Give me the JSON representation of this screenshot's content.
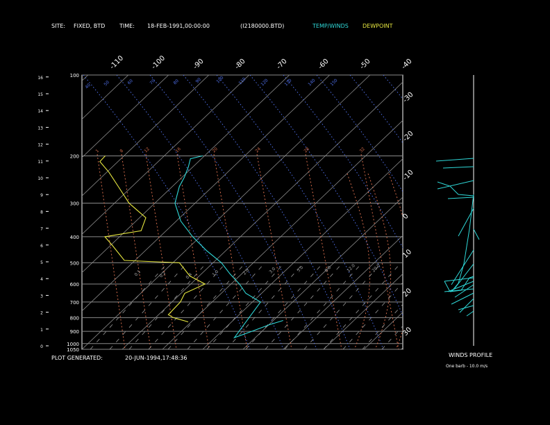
{
  "header": {
    "site_label": "SITE:",
    "site_value": "FIXED, BTD",
    "time_label": "TIME:",
    "time_value": "18-FEB-1991,00:00:00",
    "file_value": "(I2180000.BTD)",
    "legend_temp": "TEMP/WINDS",
    "legend_dew": "DEWPOINT"
  },
  "footer": {
    "generated_label": "PLOT GENERATED:",
    "generated_value": "20-JUN-1994,17:48:36",
    "winds_title": "WINDS PROFILE",
    "barb_note": "One barb - 10.0 m/s"
  },
  "colors": {
    "temperature": "#2fd8d8",
    "dewpoint": "#e8e840",
    "grid": "#8a8a8a",
    "dry_adiabat": "#4f6fe8",
    "mixing_ratio": "#d06a4a",
    "header_cyan": "#2fd8d8",
    "header_yellow": "#e8e840"
  },
  "chart_data": {
    "type": "line",
    "diagram": "skew-t log-p",
    "pressure_range_hpa": [
      1050,
      100
    ],
    "temp_range_c": [
      -40,
      30
    ],
    "pressure_labels": [
      "100",
      "200",
      "300",
      "400",
      "500",
      "600",
      "700",
      "800",
      "900",
      "1000",
      "1050"
    ],
    "height_labels": [
      "0",
      "1",
      "2",
      "3",
      "4",
      "5",
      "6",
      "7",
      "8",
      "9",
      "10",
      "11",
      "12",
      "13",
      "14",
      "15",
      "16"
    ],
    "top_temp_labels": [
      "-110",
      "-100",
      "-90",
      "-80",
      "-70",
      "-60",
      "-50",
      "-40"
    ],
    "right_temp_labels": [
      "-30",
      "-20",
      "-10",
      "0",
      "10",
      "20",
      "30"
    ],
    "mixing_ratio_labels": [
      "1",
      "8",
      "12",
      "16",
      "20",
      "24",
      "28",
      "32"
    ],
    "adiabat_labels": [
      "40",
      "50",
      "60",
      "70",
      "80",
      "90",
      "100",
      "110",
      "120",
      "130",
      "140",
      "150"
    ],
    "lower_labels": [
      "0.1",
      "0.2",
      "0.4",
      "1.0",
      "2.0",
      "3.0",
      "5.0",
      "8.0",
      "12.0",
      "20.0"
    ],
    "series": [
      {
        "name": "TEMP/WINDS",
        "points": [
          [
            820,
            1.5
          ],
          [
            850,
            -1.0
          ],
          [
            900,
            -4.0
          ],
          [
            950,
            -7.0
          ],
          [
            700,
            -9.0
          ],
          [
            650,
            -15.0
          ],
          [
            600,
            -19.0
          ],
          [
            550,
            -24.0
          ],
          [
            500,
            -29.0
          ],
          [
            450,
            -36.0
          ],
          [
            400,
            -43.0
          ],
          [
            350,
            -50.0
          ],
          [
            300,
            -56.0
          ],
          [
            260,
            -59.0
          ],
          [
            240,
            -60.0
          ],
          [
            220,
            -61.5
          ],
          [
            205,
            -63.0
          ],
          [
            200,
            -60.5
          ]
        ]
      },
      {
        "name": "DEWPOINT",
        "points": [
          [
            830,
            -23.0
          ],
          [
            800,
            -28.0
          ],
          [
            780,
            -30.0
          ],
          [
            700,
            -30.0
          ],
          [
            650,
            -31.0
          ],
          [
            600,
            -28.0
          ],
          [
            560,
            -34.0
          ],
          [
            500,
            -40.0
          ],
          [
            490,
            -55.0
          ],
          [
            430,
            -62.0
          ],
          [
            400,
            -66.0
          ],
          [
            380,
            -58.0
          ],
          [
            340,
            -60.0
          ],
          [
            300,
            -68.0
          ],
          [
            260,
            -75.0
          ],
          [
            230,
            -81.0
          ],
          [
            210,
            -86.0
          ],
          [
            200,
            -86.0
          ]
        ]
      }
    ]
  }
}
